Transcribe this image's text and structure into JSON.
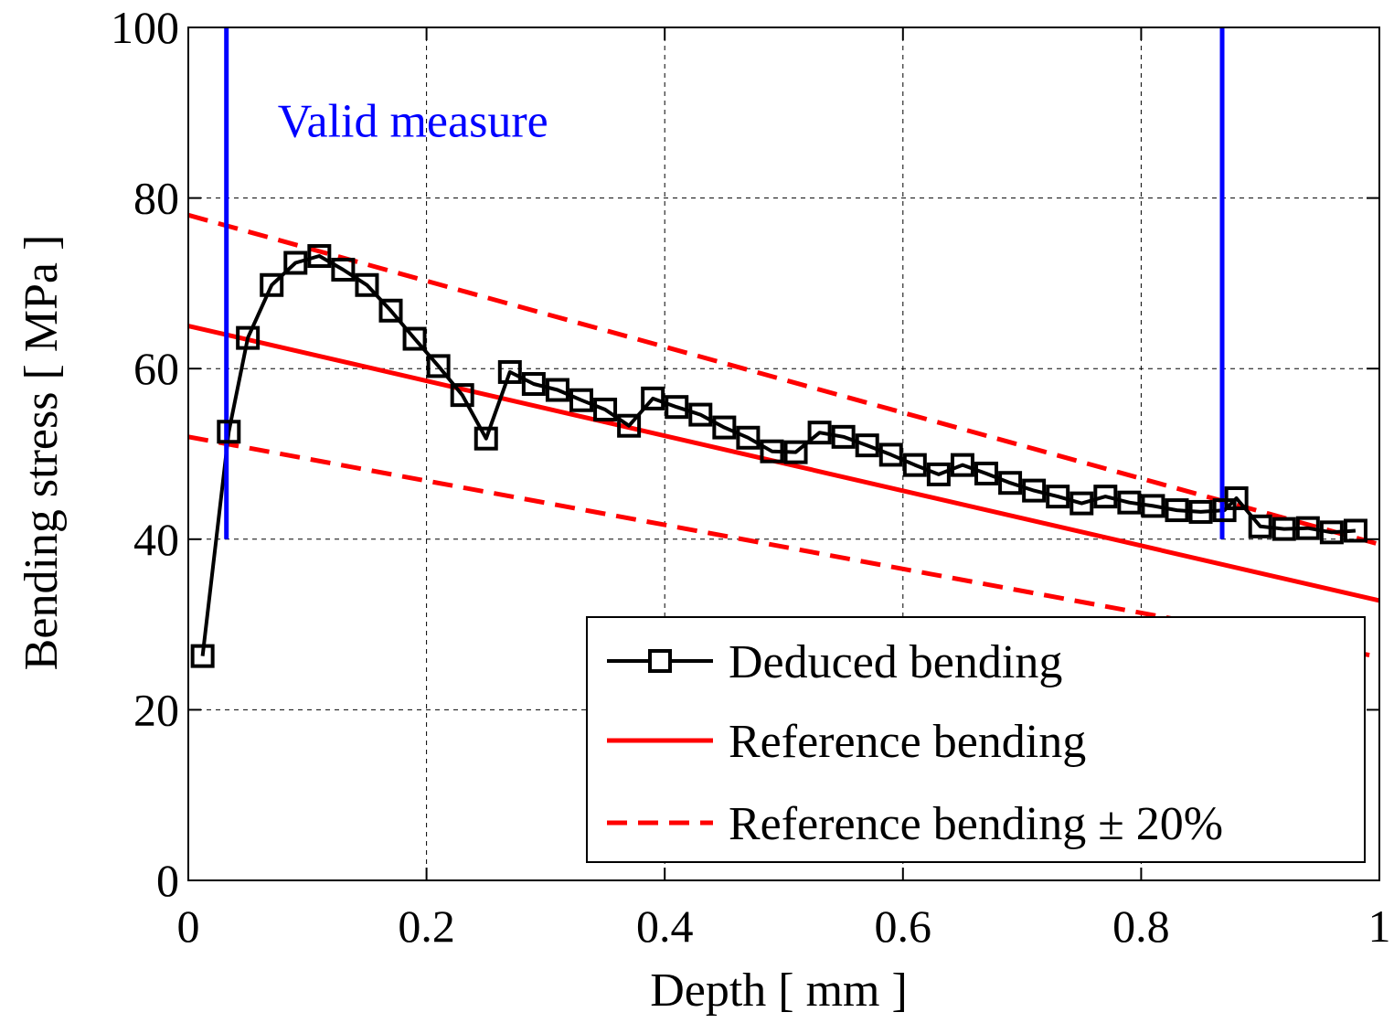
{
  "chart_data": {
    "type": "line",
    "title": "",
    "xlabel": "Depth [ mm ]",
    "ylabel": "Bending stress [ MPa ]",
    "xlim": [
      0,
      1
    ],
    "ylim": [
      0,
      100
    ],
    "xticks": [
      0,
      0.2,
      0.4,
      0.6,
      0.8,
      1
    ],
    "xtick_labels": [
      "0",
      "0.2",
      "0.4",
      "0.6",
      "0.8",
      "1"
    ],
    "yticks": [
      0,
      20,
      40,
      60,
      80,
      100
    ],
    "ytick_labels": [
      "0",
      "20",
      "40",
      "60",
      "80",
      "100"
    ],
    "grid": true,
    "legend_position": "bottom-right",
    "series": [
      {
        "name": "Deduced bending",
        "style": "solid-square-markers",
        "color": "#000000",
        "x": [
          0.012,
          0.034,
          0.05,
          0.07,
          0.09,
          0.11,
          0.13,
          0.15,
          0.17,
          0.19,
          0.21,
          0.23,
          0.25,
          0.27,
          0.29,
          0.31,
          0.33,
          0.35,
          0.37,
          0.39,
          0.41,
          0.43,
          0.45,
          0.47,
          0.49,
          0.51,
          0.53,
          0.55,
          0.57,
          0.59,
          0.61,
          0.63,
          0.65,
          0.67,
          0.69,
          0.71,
          0.73,
          0.75,
          0.77,
          0.79,
          0.81,
          0.83,
          0.85,
          0.87,
          0.88,
          0.9,
          0.92,
          0.94,
          0.96,
          0.98
        ],
        "y": [
          26.3,
          52.6,
          63.6,
          69.8,
          72.4,
          73.2,
          71.6,
          69.8,
          66.8,
          63.5,
          60.3,
          56.9,
          51.8,
          59.6,
          58.2,
          57.5,
          56.3,
          55.2,
          53.3,
          56.5,
          55.5,
          54.6,
          53.1,
          51.9,
          50.3,
          50.2,
          52.5,
          52.0,
          51.0,
          49.9,
          48.7,
          47.6,
          48.7,
          47.7,
          46.6,
          45.7,
          45.0,
          44.2,
          45.0,
          44.3,
          43.9,
          43.4,
          43.2,
          43.4,
          44.8,
          41.5,
          41.2,
          41.3,
          40.8,
          41.0
        ]
      },
      {
        "name": "Reference bending",
        "style": "solid",
        "color": "#ff0000",
        "x": [
          0,
          1
        ],
        "y": [
          65.0,
          32.8
        ]
      },
      {
        "name": "Reference bending ± 20%",
        "style": "dashed",
        "color": "#ff0000",
        "x": [
          0,
          1
        ],
        "y": [
          78.0,
          39.4
        ]
      },
      {
        "name": "Reference bending ± 20%",
        "style": "dashed",
        "color": "#ff0000",
        "x": [
          0,
          1
        ],
        "y": [
          52.0,
          26.2
        ]
      }
    ],
    "vertical_lines": [
      {
        "x": 0.032,
        "y_from": 40,
        "y_to": 100,
        "color": "#0000ff"
      },
      {
        "x": 0.868,
        "y_from": 40,
        "y_to": 100,
        "color": "#0000ff"
      }
    ],
    "annotations": [
      {
        "text": "Valid measure",
        "x": 0.075,
        "y": 89,
        "color": "#0000ff"
      }
    ]
  }
}
